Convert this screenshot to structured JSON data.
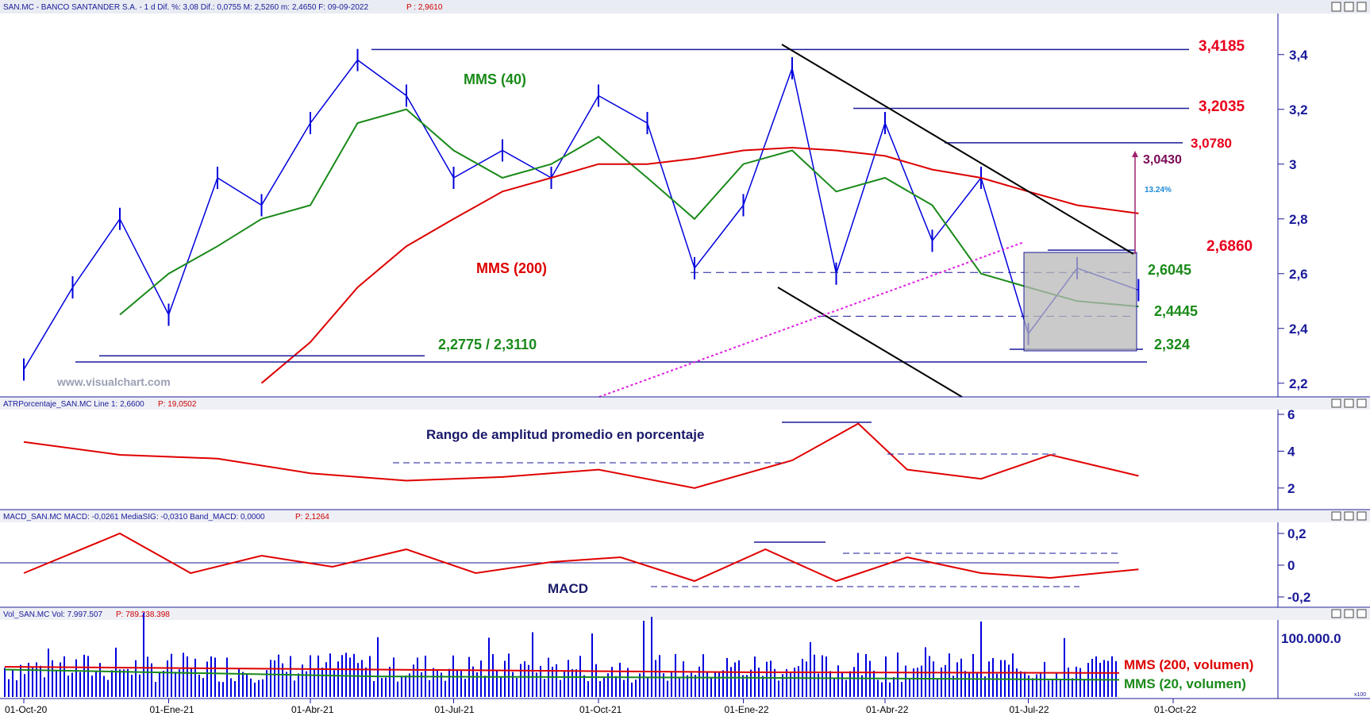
{
  "panels": {
    "price": {
      "header": "SAN.MC - BANCO SANTANDER S.A. -   1 d  Dif. %: 3,08  Dif.: 0,0755  M: 2,5260  m: 2,4650  F: 09-09-2022",
      "header_last": "P : 2,9610",
      "watermark": "www.visualchart.com"
    },
    "atr": {
      "header": "ATRPorcentaje_SAN.MC  Line 1: 2,6600",
      "header_last": "P: 19,0502",
      "title": "Rango de amplitud promedio en porcentaje"
    },
    "macd": {
      "header": "MACD_SAN.MC  MACD: -0,0261  MediaSIG: -0,0310  Band_MACD: 0,0000",
      "header_last": "P: 2,1264",
      "title": "MACD"
    },
    "volume": {
      "header": "Vol_SAN.MC  Vol: 7.997.507",
      "header_last": "P: 789.238.398",
      "axis_note": "x100"
    }
  },
  "annotations": {
    "mms40": "MMS (40)",
    "mms200": "MMS (200)",
    "support_pair": "2,2775 / 2,3110",
    "pct_move": "13.24%",
    "vol_mms200": "MMS (200, volumen)",
    "vol_mms20": "MMS (20, volumen)"
  },
  "levels": [
    {
      "label": "3,4185",
      "value": 3.4185,
      "color": "#e8001c"
    },
    {
      "label": "3,2035",
      "value": 3.2035,
      "color": "#e8001c"
    },
    {
      "label": "3,0780",
      "value": 3.078,
      "color": "#e8001c"
    },
    {
      "label": "3,0430",
      "value": 3.043,
      "color": "#7a0a55"
    },
    {
      "label": "2,6860",
      "value": 2.686,
      "color": "#e8001c"
    },
    {
      "label": "2,6045",
      "value": 2.6045,
      "color": "#1a8a1a"
    },
    {
      "label": "2,4445",
      "value": 2.4445,
      "color": "#1a8a1a"
    },
    {
      "label": "2,324",
      "value": 2.324,
      "color": "#1a8a1a"
    }
  ],
  "colors": {
    "price": "#0000dd",
    "mms40": "#1a8a1a",
    "mms200": "#dd0000",
    "axis": "#1a1a9a",
    "trendline": "#000000",
    "dotted": "#e020e0"
  },
  "chart_data": [
    {
      "type": "line",
      "panel": "price",
      "x": [
        "2020-10-01",
        "2020-11-01",
        "2020-12-01",
        "2021-01-01",
        "2021-02-01",
        "2021-03-01",
        "2021-04-01",
        "2021-05-01",
        "2021-06-01",
        "2021-07-01",
        "2021-08-01",
        "2021-09-01",
        "2021-10-01",
        "2021-11-01",
        "2021-12-01",
        "2022-01-01",
        "2022-02-01",
        "2022-03-01",
        "2022-04-01",
        "2022-05-01",
        "2022-06-01",
        "2022-07-01",
        "2022-08-01",
        "2022-09-09"
      ],
      "series": [
        {
          "name": "SAN.MC",
          "values": [
            2.25,
            2.55,
            2.8,
            2.45,
            2.95,
            2.85,
            3.15,
            3.38,
            3.25,
            2.95,
            3.05,
            2.95,
            3.25,
            3.15,
            2.62,
            2.85,
            3.35,
            2.6,
            3.15,
            2.72,
            2.95,
            2.38,
            2.62,
            2.54
          ]
        },
        {
          "name": "MMS (40)",
          "values": [
            null,
            null,
            2.45,
            2.6,
            2.7,
            2.8,
            2.85,
            3.15,
            3.2,
            3.05,
            2.95,
            3.0,
            3.1,
            2.95,
            2.8,
            3.0,
            3.05,
            2.9,
            2.95,
            2.85,
            2.6,
            2.55,
            2.5,
            2.48
          ]
        },
        {
          "name": "MMS (200)",
          "values": [
            null,
            null,
            null,
            null,
            null,
            2.2,
            2.35,
            2.55,
            2.7,
            2.8,
            2.9,
            2.95,
            3.0,
            3.0,
            3.02,
            3.05,
            3.06,
            3.05,
            3.03,
            2.98,
            2.95,
            2.9,
            2.85,
            2.82
          ]
        }
      ],
      "ylim": [
        2.15,
        3.55
      ],
      "yticks": [
        "2,2",
        "2,4",
        "2,6",
        "2,8",
        "3",
        "3,2",
        "3,4"
      ]
    },
    {
      "type": "line",
      "panel": "atr",
      "x": [
        "2020-10-01",
        "2020-12-01",
        "2021-02-01",
        "2021-04-01",
        "2021-06-01",
        "2021-08-01",
        "2021-10-01",
        "2021-12-01",
        "2022-02-01",
        "2022-03-15",
        "2022-04-15",
        "2022-06-01",
        "2022-07-15",
        "2022-09-09"
      ],
      "series": [
        {
          "name": "ATRPorcentaje",
          "values": [
            4.5,
            3.8,
            3.6,
            2.8,
            2.4,
            2.6,
            3.0,
            2.0,
            3.5,
            5.5,
            3.0,
            2.5,
            3.8,
            2.66
          ]
        }
      ],
      "ylim": [
        1,
        6
      ],
      "yticks": [
        "2",
        "4",
        "6"
      ]
    },
    {
      "type": "line",
      "panel": "macd",
      "x": [
        "2020-10-01",
        "2020-12-01",
        "2021-01-15",
        "2021-03-01",
        "2021-04-15",
        "2021-06-01",
        "2021-07-15",
        "2021-09-01",
        "2021-10-15",
        "2021-12-01",
        "2022-01-15",
        "2022-03-01",
        "2022-04-15",
        "2022-06-01",
        "2022-07-15",
        "2022-09-09"
      ],
      "series": [
        {
          "name": "MACD",
          "values": [
            -0.05,
            0.2,
            -0.05,
            0.06,
            -0.01,
            0.1,
            -0.05,
            0.02,
            0.05,
            -0.1,
            0.1,
            -0.1,
            0.05,
            -0.05,
            -0.08,
            -0.0261
          ]
        }
      ],
      "ylim": [
        -0.25,
        0.25
      ],
      "yticks": [
        "0,2",
        "0",
        "-0,2"
      ]
    },
    {
      "type": "bar",
      "panel": "volume",
      "ylim": [
        0,
        110000
      ],
      "yticks": [
        "100.000.0"
      ],
      "series": [
        {
          "name": "MMS (200, volumen)",
          "values": [
            44000,
            40000,
            36000,
            35000
          ]
        },
        {
          "name": "MMS (20, volumen)",
          "values": [
            40000,
            30000,
            28000,
            25000
          ]
        }
      ]
    }
  ],
  "x_axis": {
    "ticks": [
      "01-Oct-20",
      "01-Ene-21",
      "01-Abr-21",
      "01-Jul-21",
      "01-Oct-21",
      "01-Ene-22",
      "01-Abr-22",
      "01-Jul-22",
      "01-Oct-22"
    ]
  }
}
